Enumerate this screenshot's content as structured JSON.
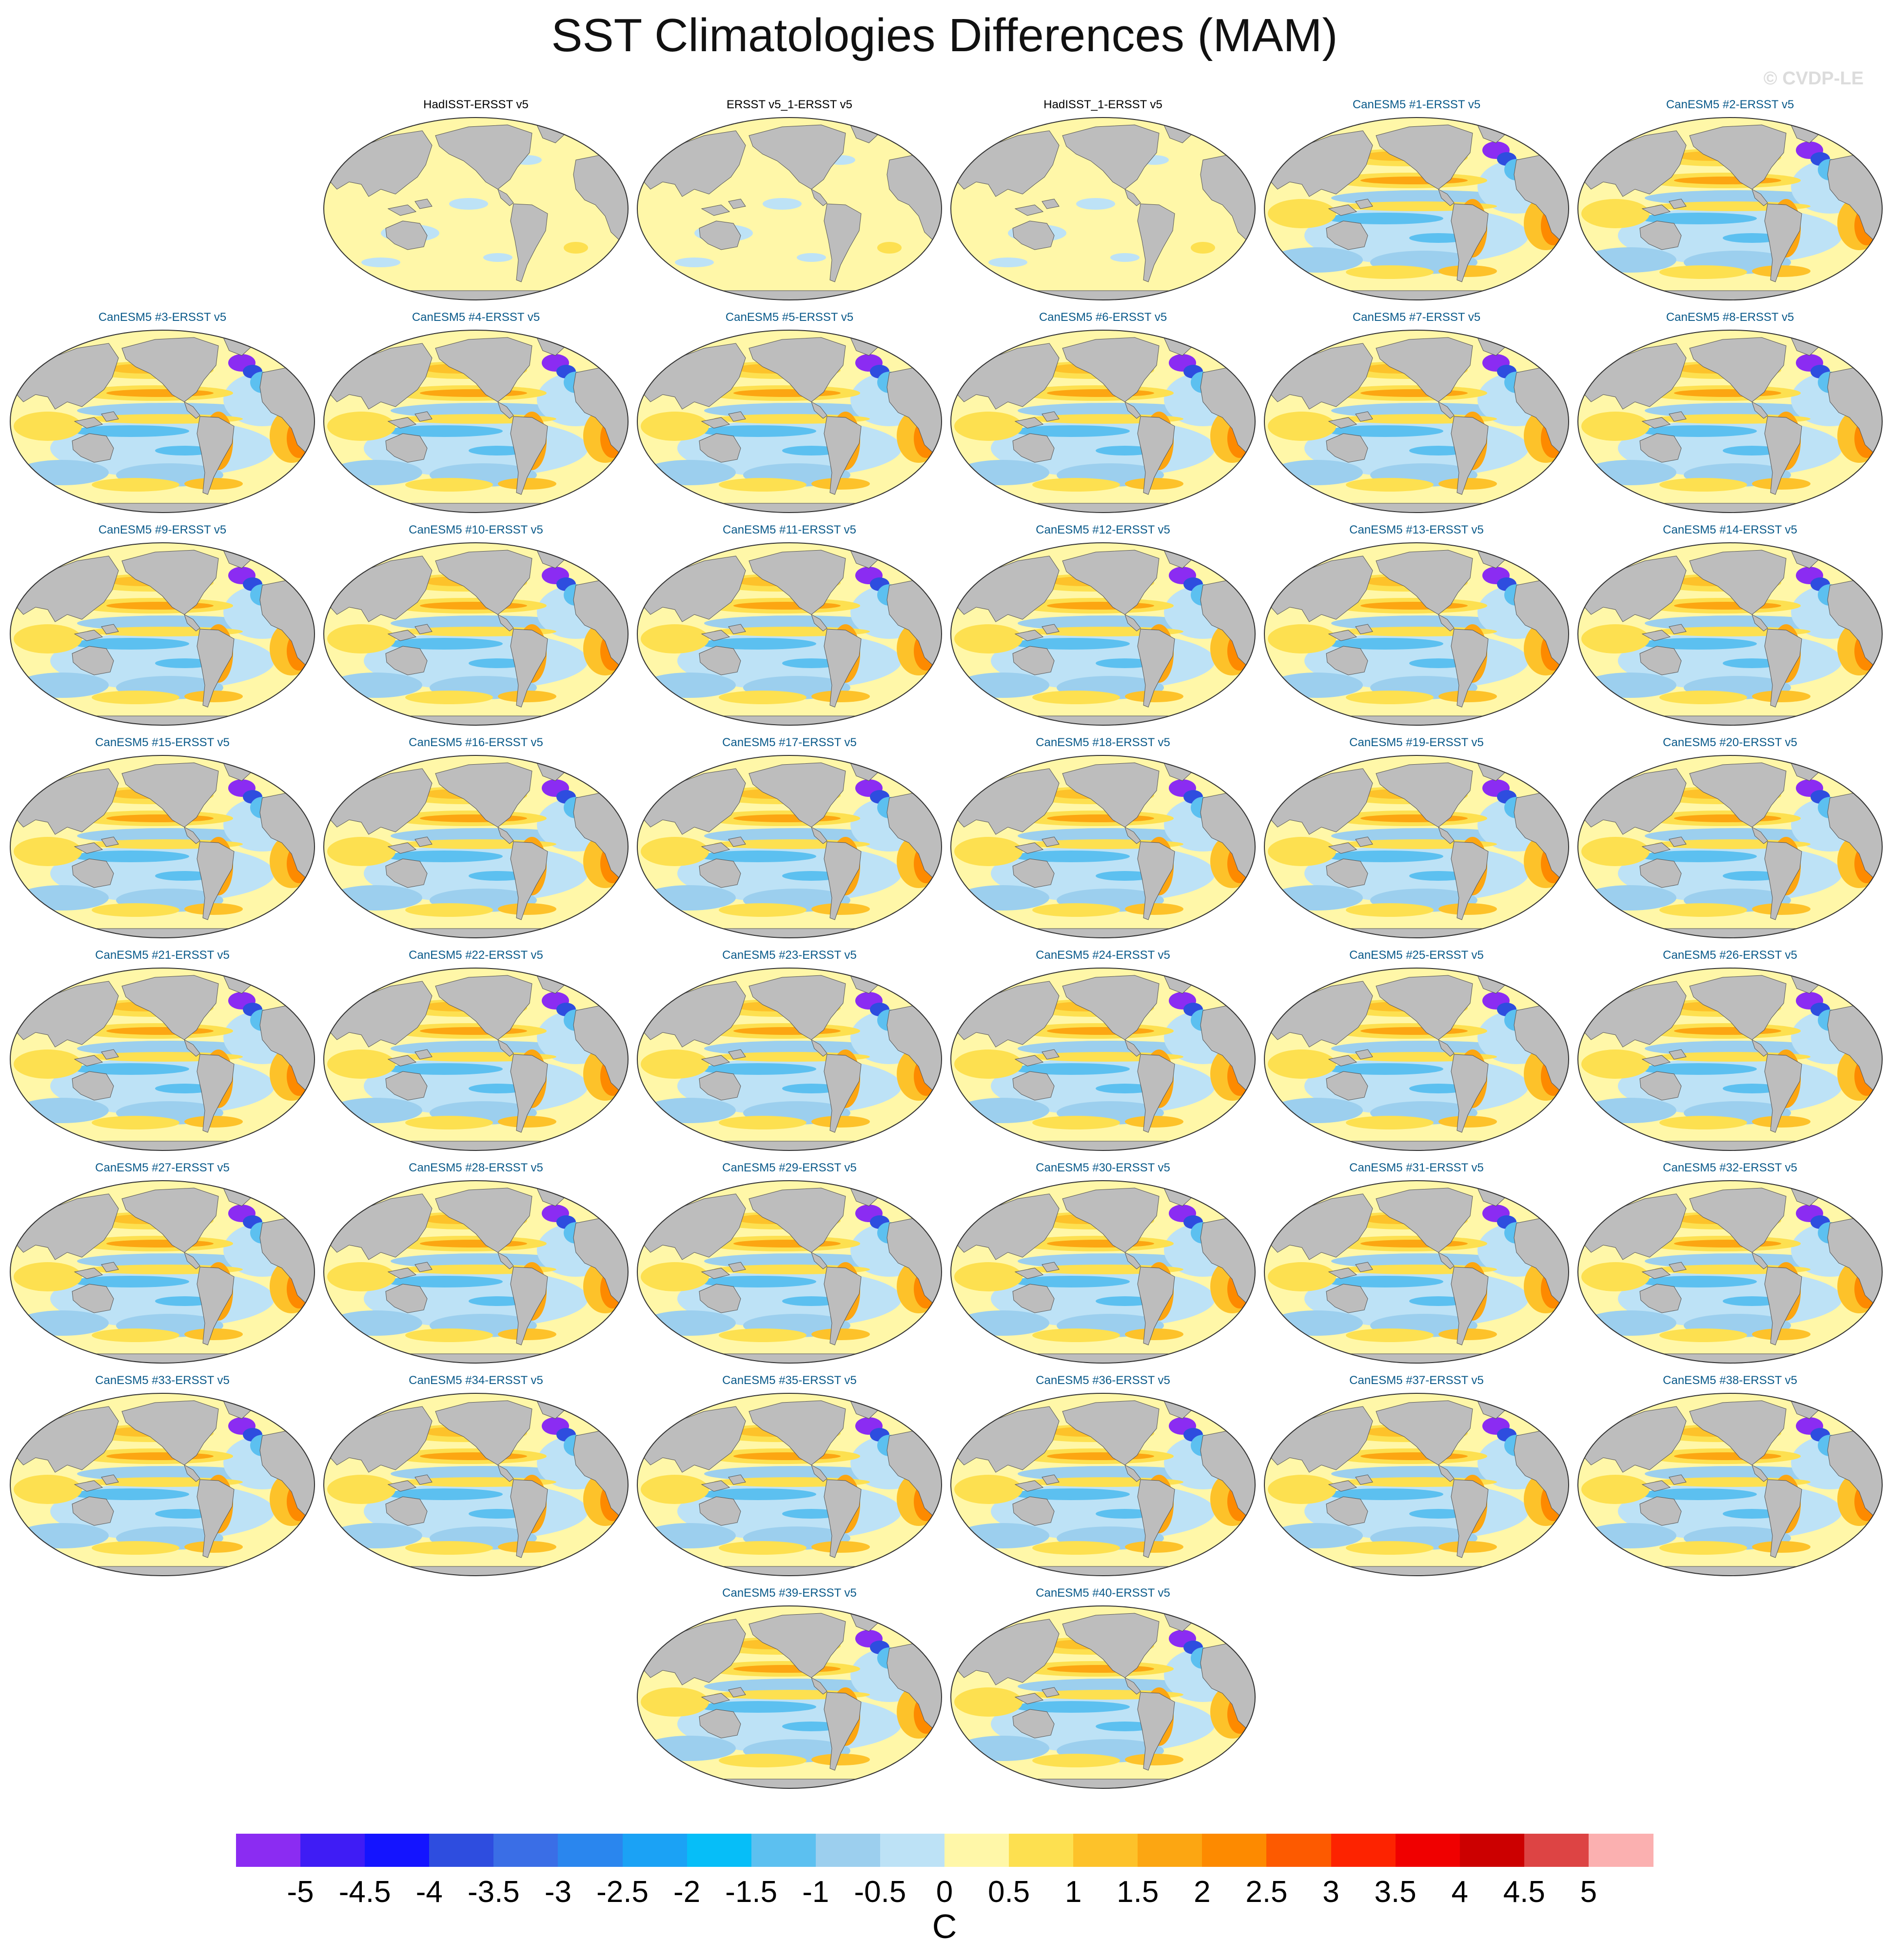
{
  "title": "SST Climatologies Differences (MAM)",
  "watermark": "© CVDP-LE",
  "colors": {
    "land": "#bdbdbd",
    "coast": "#555555",
    "ocean_base": "#fff7a8"
  },
  "panels": [
    {
      "label": "HadISST-ERSST v5",
      "kind": "obs",
      "row": 0,
      "col": 1
    },
    {
      "label": "ERSST v5_1-ERSST v5",
      "kind": "obs",
      "row": 0,
      "col": 2
    },
    {
      "label": "HadISST_1-ERSST v5",
      "kind": "obs",
      "row": 0,
      "col": 3
    },
    {
      "label": "CanESM5 #1-ERSST v5",
      "kind": "model",
      "row": 0,
      "col": 4
    },
    {
      "label": "CanESM5 #2-ERSST v5",
      "kind": "model",
      "row": 0,
      "col": 5
    },
    {
      "label": "CanESM5 #3-ERSST v5",
      "kind": "model",
      "row": 1,
      "col": 0
    },
    {
      "label": "CanESM5 #4-ERSST v5",
      "kind": "model",
      "row": 1,
      "col": 1
    },
    {
      "label": "CanESM5 #5-ERSST v5",
      "kind": "model",
      "row": 1,
      "col": 2
    },
    {
      "label": "CanESM5 #6-ERSST v5",
      "kind": "model",
      "row": 1,
      "col": 3
    },
    {
      "label": "CanESM5 #7-ERSST v5",
      "kind": "model",
      "row": 1,
      "col": 4
    },
    {
      "label": "CanESM5 #8-ERSST v5",
      "kind": "model",
      "row": 1,
      "col": 5
    },
    {
      "label": "CanESM5 #9-ERSST v5",
      "kind": "model",
      "row": 2,
      "col": 0
    },
    {
      "label": "CanESM5 #10-ERSST v5",
      "kind": "model",
      "row": 2,
      "col": 1
    },
    {
      "label": "CanESM5 #11-ERSST v5",
      "kind": "model",
      "row": 2,
      "col": 2
    },
    {
      "label": "CanESM5 #12-ERSST v5",
      "kind": "model",
      "row": 2,
      "col": 3
    },
    {
      "label": "CanESM5 #13-ERSST v5",
      "kind": "model",
      "row": 2,
      "col": 4
    },
    {
      "label": "CanESM5 #14-ERSST v5",
      "kind": "model",
      "row": 2,
      "col": 5
    },
    {
      "label": "CanESM5 #15-ERSST v5",
      "kind": "model",
      "row": 3,
      "col": 0
    },
    {
      "label": "CanESM5 #16-ERSST v5",
      "kind": "model",
      "row": 3,
      "col": 1
    },
    {
      "label": "CanESM5 #17-ERSST v5",
      "kind": "model",
      "row": 3,
      "col": 2
    },
    {
      "label": "CanESM5 #18-ERSST v5",
      "kind": "model",
      "row": 3,
      "col": 3
    },
    {
      "label": "CanESM5 #19-ERSST v5",
      "kind": "model",
      "row": 3,
      "col": 4
    },
    {
      "label": "CanESM5 #20-ERSST v5",
      "kind": "model",
      "row": 3,
      "col": 5
    },
    {
      "label": "CanESM5 #21-ERSST v5",
      "kind": "model",
      "row": 4,
      "col": 0
    },
    {
      "label": "CanESM5 #22-ERSST v5",
      "kind": "model",
      "row": 4,
      "col": 1
    },
    {
      "label": "CanESM5 #23-ERSST v5",
      "kind": "model",
      "row": 4,
      "col": 2
    },
    {
      "label": "CanESM5 #24-ERSST v5",
      "kind": "model",
      "row": 4,
      "col": 3
    },
    {
      "label": "CanESM5 #25-ERSST v5",
      "kind": "model",
      "row": 4,
      "col": 4
    },
    {
      "label": "CanESM5 #26-ERSST v5",
      "kind": "model",
      "row": 4,
      "col": 5
    },
    {
      "label": "CanESM5 #27-ERSST v5",
      "kind": "model",
      "row": 5,
      "col": 0
    },
    {
      "label": "CanESM5 #28-ERSST v5",
      "kind": "model",
      "row": 5,
      "col": 1
    },
    {
      "label": "CanESM5 #29-ERSST v5",
      "kind": "model",
      "row": 5,
      "col": 2
    },
    {
      "label": "CanESM5 #30-ERSST v5",
      "kind": "model",
      "row": 5,
      "col": 3
    },
    {
      "label": "CanESM5 #31-ERSST v5",
      "kind": "model",
      "row": 5,
      "col": 4
    },
    {
      "label": "CanESM5 #32-ERSST v5",
      "kind": "model",
      "row": 5,
      "col": 5
    },
    {
      "label": "CanESM5 #33-ERSST v5",
      "kind": "model",
      "row": 6,
      "col": 0
    },
    {
      "label": "CanESM5 #34-ERSST v5",
      "kind": "model",
      "row": 6,
      "col": 1
    },
    {
      "label": "CanESM5 #35-ERSST v5",
      "kind": "model",
      "row": 6,
      "col": 2
    },
    {
      "label": "CanESM5 #36-ERSST v5",
      "kind": "model",
      "row": 6,
      "col": 3
    },
    {
      "label": "CanESM5 #37-ERSST v5",
      "kind": "model",
      "row": 6,
      "col": 4
    },
    {
      "label": "CanESM5 #38-ERSST v5",
      "kind": "model",
      "row": 6,
      "col": 5
    },
    {
      "label": "CanESM5 #39-ERSST v5",
      "kind": "model",
      "row": 7,
      "col": 2
    },
    {
      "label": "CanESM5 #40-ERSST v5",
      "kind": "model",
      "row": 7,
      "col": 3
    }
  ],
  "colorbar": {
    "units": "C",
    "labels": [
      "-5",
      "-4.5",
      "-4",
      "-3.5",
      "-3",
      "-2.5",
      "-2",
      "-1.5",
      "-1",
      "-0.5",
      "0",
      "0.5",
      "1",
      "1.5",
      "2",
      "2.5",
      "3",
      "3.5",
      "4",
      "4.5",
      "5"
    ],
    "colors": [
      "#8b2cf2",
      "#3f1cf5",
      "#1414ff",
      "#2e4ddf",
      "#3a6ee6",
      "#2a86ee",
      "#1ba2f5",
      "#06bef8",
      "#5cc0f0",
      "#9ccfee",
      "#bde2f6",
      "#fff7a8",
      "#fde050",
      "#fdc22a",
      "#fca612",
      "#fd8a00",
      "#fd5a00",
      "#fd2300",
      "#f00000",
      "#cc0000",
      "#dd4444",
      "#fbb0b0"
    ]
  }
}
